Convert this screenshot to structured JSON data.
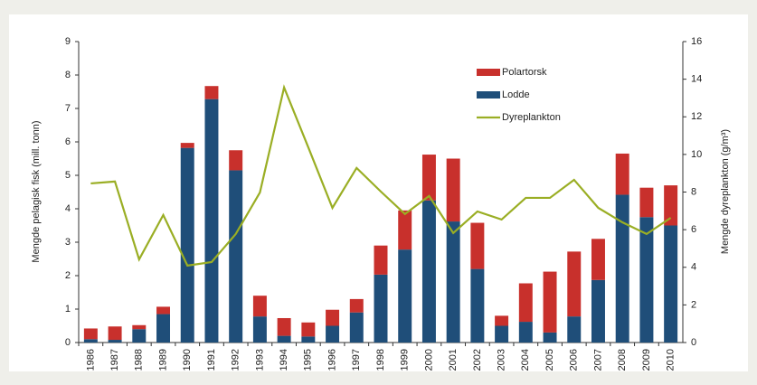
{
  "chart_data": {
    "type": "bar",
    "categories": [
      "1986",
      "1987",
      "1988",
      "1989",
      "1990",
      "1991",
      "1992",
      "1993",
      "1994",
      "1995",
      "1996",
      "1997",
      "1998",
      "1999",
      "2000",
      "2001",
      "2002",
      "2003",
      "2004",
      "2005",
      "2006",
      "2007",
      "2008",
      "2009",
      "2010"
    ],
    "series": [
      {
        "name": "Polartorsk",
        "type": "bar",
        "color": "#c8302c",
        "values": [
          0.32,
          0.4,
          0.12,
          0.22,
          0.15,
          0.39,
          0.6,
          0.62,
          0.53,
          0.42,
          0.48,
          0.4,
          0.87,
          1.17,
          1.37,
          1.88,
          1.38,
          0.3,
          1.15,
          1.82,
          1.94,
          1.23,
          1.23,
          0.88,
          1.2
        ]
      },
      {
        "name": "Lodde",
        "type": "bar",
        "color": "#1f4e79",
        "values": [
          0.1,
          0.08,
          0.4,
          0.85,
          5.82,
          7.28,
          5.15,
          0.78,
          0.2,
          0.18,
          0.5,
          0.9,
          2.03,
          2.78,
          4.25,
          3.62,
          2.2,
          0.5,
          0.62,
          0.3,
          0.78,
          1.87,
          4.42,
          3.75,
          3.5
        ]
      },
      {
        "name": "Dyreplankton",
        "type": "line",
        "axis": "y2",
        "color": "#9aae24",
        "values": [
          8.46,
          8.56,
          4.42,
          6.78,
          4.09,
          4.28,
          5.77,
          7.98,
          13.56,
          10.38,
          7.16,
          9.28,
          8.03,
          6.83,
          7.79,
          5.82,
          6.97,
          6.54,
          7.69,
          7.69,
          8.65,
          7.16,
          6.39,
          5.77,
          6.63
        ]
      }
    ],
    "ylabel": "Mengde pelagisk fisk (mill. tonn)",
    "y2label": "Mengde dyreplankton (g/m³)",
    "ylim": [
      0,
      9
    ],
    "yticks": [
      0,
      1,
      2,
      3,
      4,
      5,
      6,
      7,
      8,
      9
    ],
    "y2lim": [
      0,
      16
    ],
    "y2ticks": [
      0,
      2,
      4,
      6,
      8,
      10,
      12,
      14,
      16
    ],
    "grid": false,
    "legend": "upper right"
  }
}
